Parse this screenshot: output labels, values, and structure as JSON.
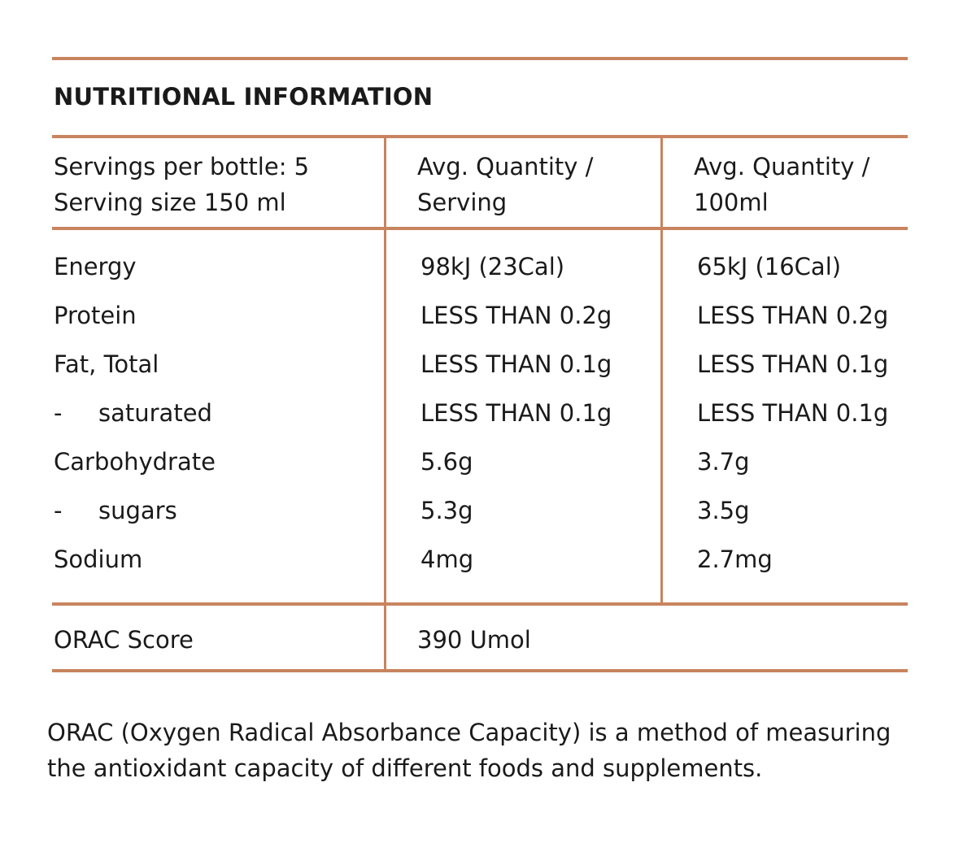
{
  "title": "NUTRITIONAL INFORMATION",
  "header": {
    "servings_line1": "Servings per bottle: 5",
    "servings_line2": "Serving size 150 ml",
    "col1_line1": "Avg. Quantity /",
    "col1_line2": "Serving",
    "col2_line1": "Avg. Quantity /",
    "col2_line2": "100ml"
  },
  "rows": [
    {
      "label": "Energy",
      "dash": "",
      "per_serving": "98kJ (23Cal)",
      "per_100ml": "65kJ (16Cal)"
    },
    {
      "label": "Protein",
      "dash": "",
      "per_serving": "LESS THAN 0.2g",
      "per_100ml": "LESS THAN 0.2g"
    },
    {
      "label": "Fat, Total",
      "dash": "",
      "per_serving": "LESS THAN 0.1g",
      "per_100ml": "LESS THAN 0.1g"
    },
    {
      "label": "saturated",
      "dash": "-",
      "per_serving": "LESS THAN 0.1g",
      "per_100ml": "LESS THAN 0.1g"
    },
    {
      "label": "Carbohydrate",
      "dash": "",
      "per_serving": "5.6g",
      "per_100ml": "3.7g"
    },
    {
      "label": "sugars",
      "dash": "-",
      "per_serving": "5.3g",
      "per_100ml": "3.5g"
    },
    {
      "label": "Sodium",
      "dash": "",
      "per_serving": "4mg",
      "per_100ml": "2.7mg"
    }
  ],
  "orac": {
    "label": "ORAC Score",
    "value": "390 Umol"
  },
  "footnote": "ORAC (Oxygen Radical Absorbance Capacity) is a method of measuring the antioxidant capacity of different foods and supplements.",
  "colors": {
    "rule": "#c8845e",
    "text": "#1a1a1a"
  }
}
